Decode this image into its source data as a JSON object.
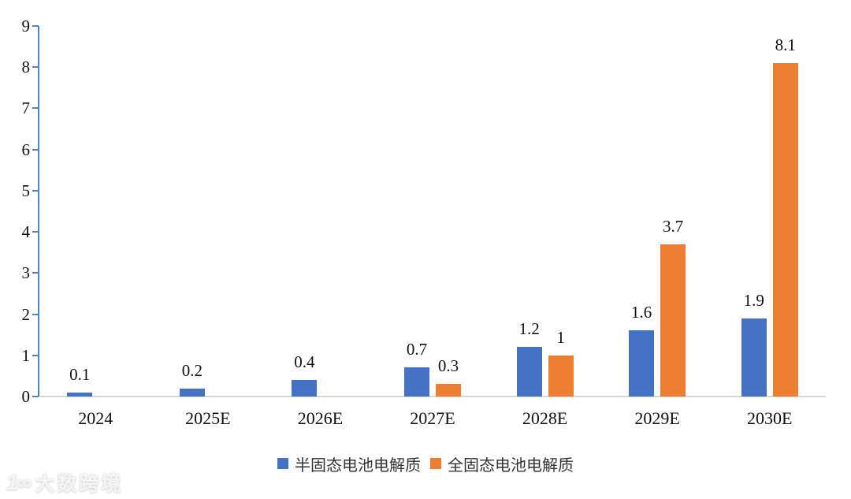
{
  "chart_data": {
    "type": "bar",
    "title": "",
    "xlabel": "",
    "ylabel": "",
    "categories": [
      "2024",
      "2025E",
      "2026E",
      "2027E",
      "2028E",
      "2029E",
      "2030E"
    ],
    "series": [
      {
        "key": "semi-solid-electrolyte",
        "name": "半固态电池电解质",
        "color": "#4472C4",
        "values": [
          0.1,
          0.2,
          0.4,
          0.7,
          1.2,
          1.6,
          1.9
        ],
        "labels": [
          "0.1",
          "0.2",
          "0.4",
          "0.7",
          "1.2",
          "1.6",
          "1.9"
        ]
      },
      {
        "key": "all-solid-electrolyte",
        "name": "全固态电池电解质",
        "color": "#ED7D31",
        "values": [
          null,
          null,
          null,
          0.3,
          1,
          3.7,
          8.1
        ],
        "labels": [
          null,
          null,
          null,
          "0.3",
          "1",
          "3.7",
          "8.1"
        ]
      }
    ],
    "ylim": [
      0,
      9
    ],
    "yticks": [
      0,
      1,
      2,
      3,
      4,
      5,
      6,
      7,
      8,
      9
    ],
    "grid": false,
    "legend_position": "bottom"
  },
  "colors": {
    "axis": "#5b80b4",
    "baseline": "#d6d6d6",
    "value_label_text": "#111111",
    "legend_text": "#333333"
  },
  "watermark": {
    "logo": "1∞",
    "text": "大数跨境"
  }
}
